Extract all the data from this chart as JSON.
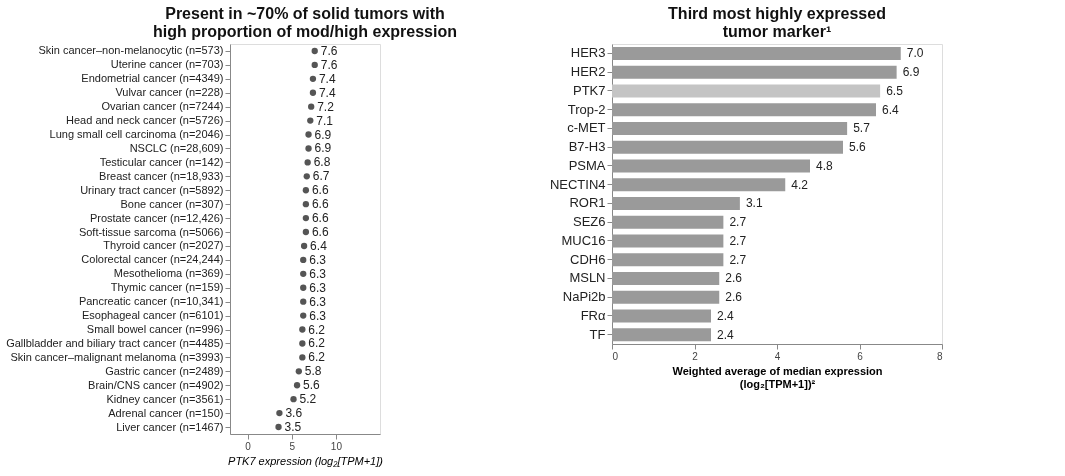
{
  "chart_data": [
    {
      "type": "scatter",
      "orientation": "horizontal",
      "title": "Present in ~70% of solid tumors with\nhigh proportion of mod/high expression",
      "xlabel": "PTK7 expression (log₂[TPM+1])",
      "categories": [
        "Skin cancer–non-melanocytic (n=573)",
        "Uterine cancer (n=703)",
        "Endometrial cancer (n=4349)",
        "Vulvar cancer (n=228)",
        "Ovarian cancer (n=7244)",
        "Head and neck cancer (n=5726)",
        "Lung small cell carcinoma (n=2046)",
        "NSCLC (n=28,609)",
        "Testicular cancer (n=142)",
        "Breast cancer (n=18,933)",
        "Urinary tract cancer (n=5892)",
        "Bone cancer (n=307)",
        "Prostate cancer (n=12,426)",
        "Soft-tissue sarcoma (n=5066)",
        "Thyroid cancer (n=2027)",
        "Colorectal cancer (n=24,244)",
        "Mesothelioma (n=369)",
        "Thymic cancer (n=159)",
        "Pancreatic cancer (n=10,341)",
        "Esophageal cancer (n=6101)",
        "Small bowel cancer (n=996)",
        "Gallbladder and biliary tract cancer (n=4485)",
        "Skin cancer–malignant melanoma (n=3993)",
        "Gastric cancer (n=2489)",
        "Brain/CNS cancer (n=4902)",
        "Kidney cancer (n=3561)",
        "Adrenal cancer (n=150)",
        "Liver cancer (n=1467)"
      ],
      "values": [
        7.6,
        7.6,
        7.4,
        7.4,
        7.2,
        7.1,
        6.9,
        6.9,
        6.8,
        6.7,
        6.6,
        6.6,
        6.6,
        6.6,
        6.4,
        6.3,
        6.3,
        6.3,
        6.3,
        6.3,
        6.2,
        6.2,
        6.2,
        5.8,
        5.6,
        5.2,
        3.6,
        3.5
      ],
      "color": "#555555",
      "marker": "circle",
      "xlim": [
        -2,
        15
      ],
      "xticks": [
        0,
        5,
        10
      ],
      "data_labels": true
    },
    {
      "type": "bar",
      "orientation": "horizontal",
      "title": "Third most highly expressed\ntumor marker¹",
      "xlabel": "Weighted average of median expression\n(log₂[TPM+1])²",
      "categories": [
        "HER3",
        "HER2",
        "PTK7",
        "Trop-2",
        "c-MET",
        "B7-H3",
        "PSMA",
        "NECTIN4",
        "ROR1",
        "SEZ6",
        "MUC16",
        "CDH6",
        "MSLN",
        "NaPi2b",
        "FRα",
        "TF"
      ],
      "values": [
        7.0,
        6.9,
        6.5,
        6.4,
        5.7,
        5.6,
        4.8,
        4.2,
        3.1,
        2.7,
        2.7,
        2.7,
        2.6,
        2.6,
        2.4,
        2.4
      ],
      "colors": [
        "#9a9a9a",
        "#9a9a9a",
        "#c4c4c4",
        "#9a9a9a",
        "#9a9a9a",
        "#9a9a9a",
        "#9a9a9a",
        "#9a9a9a",
        "#9a9a9a",
        "#9a9a9a",
        "#9a9a9a",
        "#9a9a9a",
        "#9a9a9a",
        "#9a9a9a",
        "#9a9a9a",
        "#9a9a9a"
      ],
      "xlim": [
        0,
        8
      ],
      "xticks": [
        0,
        2,
        4,
        6,
        8
      ],
      "value_labels": [
        "7.0",
        "6.9",
        "6.5",
        "6.4",
        "5.7",
        "5.6",
        "4.8",
        "4.2",
        "3.1",
        "2.7",
        "2.7",
        "2.7",
        "2.6",
        "2.6",
        "2.4",
        "2.4"
      ]
    }
  ]
}
